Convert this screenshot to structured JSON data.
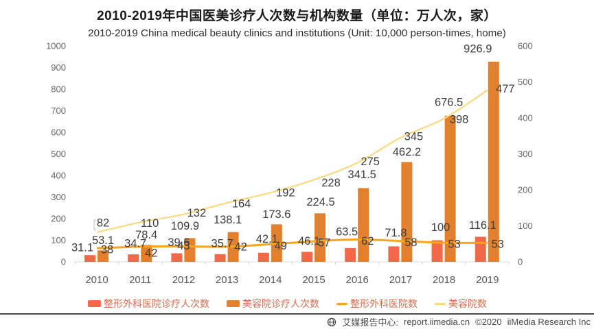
{
  "title": "2010-2019年中国医美诊疗人次数与机构数量（单位：万人次，家）",
  "subtitle": "2010-2019 China medical beauty clinics and institutions (Unit: 10,000 person-times, home)",
  "chart_data": {
    "type": "bar+line",
    "categories": [
      "2010",
      "2011",
      "2012",
      "2013",
      "2014",
      "2015",
      "2016",
      "2017",
      "2018",
      "2019"
    ],
    "series": [
      {
        "name": "整形外科医院诊疗人次数",
        "type": "bar",
        "axis": "left",
        "color": "#f26849",
        "values": [
          31.1,
          34.7,
          39.6,
          35.7,
          42.1,
          46.1,
          63.5,
          71.8,
          100,
          116.1
        ]
      },
      {
        "name": "美容院诊疗人次数",
        "type": "bar",
        "axis": "left",
        "color": "#e2802d",
        "values": [
          53.1,
          78.4,
          109.9,
          138.1,
          173.6,
          224.5,
          341.5,
          462.2,
          676.5,
          926.9
        ]
      },
      {
        "name": "整形外科医院数",
        "type": "line",
        "axis": "right",
        "color": "#faa41b",
        "values": [
          38,
          42,
          43,
          42,
          49,
          57,
          62,
          58,
          53,
          53
        ]
      },
      {
        "name": "美容院数",
        "type": "line",
        "axis": "right",
        "color": "#fbd97f",
        "values": [
          82,
          110,
          132,
          164,
          192,
          228,
          275,
          345,
          398,
          477
        ]
      }
    ],
    "left_axis": {
      "min": 0,
      "max": 1000,
      "step": 100
    },
    "right_axis": {
      "min": 0,
      "max": 600,
      "step": 100
    },
    "grid": false,
    "legend_position": "bottom"
  },
  "footer": {
    "source": "艾媒报告中心:",
    "url": "report.iimedia.cn",
    "copyright": "©2020",
    "brand": "iiMedia Research Inc"
  }
}
